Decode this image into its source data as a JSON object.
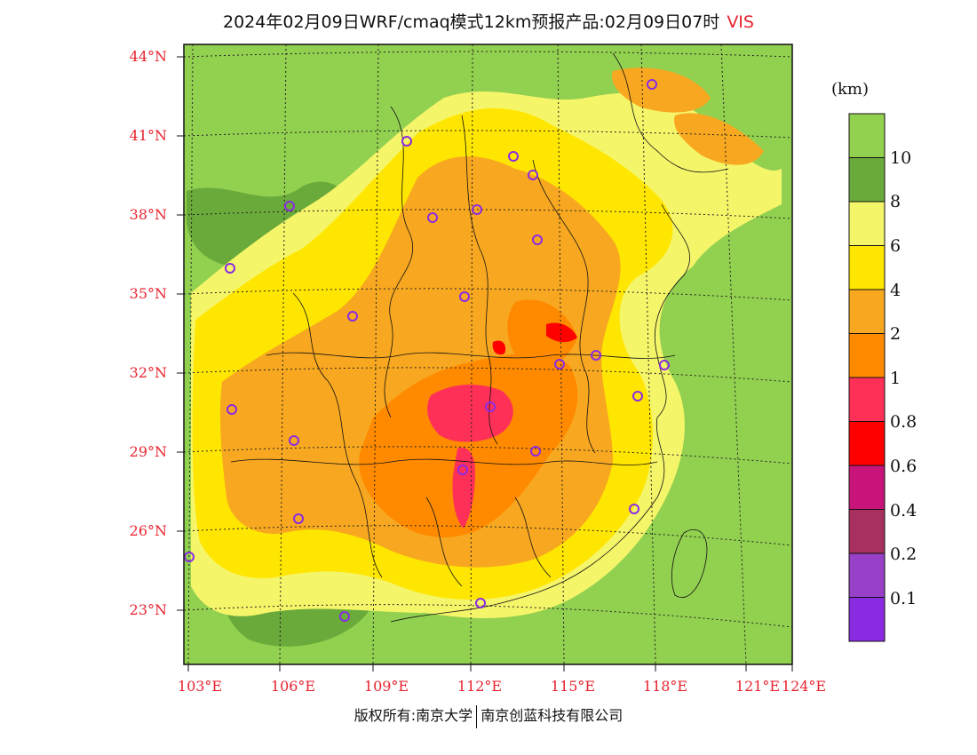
{
  "title": {
    "main": "2024年02月09日WRF/cmaq模式12km预报产品:02月09日07时",
    "variable": "VIS"
  },
  "axes": {
    "lat_labels": [
      "44°N",
      "41°N",
      "38°N",
      "35°N",
      "32°N",
      "29°N",
      "26°N",
      "23°N"
    ],
    "lon_labels": [
      "103°E",
      "106°E",
      "109°E",
      "112°E",
      "115°E",
      "118°E",
      "121°E",
      "124°E"
    ]
  },
  "colorbar": {
    "unit": "(km)",
    "labels": [
      "10",
      "8",
      "6",
      "4",
      "2",
      "1",
      "0.8",
      "0.6",
      "0.4",
      "0.2",
      "0.1"
    ],
    "colors": [
      "#92d050",
      "#6aaa3a",
      "#f5f56a",
      "#ffe600",
      "#f8a820",
      "#ff8a00",
      "#ff3058",
      "#ff0000",
      "#c8147a",
      "#a83060",
      "#9840c8",
      "#8a2be2"
    ]
  },
  "footer": {
    "left": "版权所有:南京大学",
    "right": "南京创蓝科技有限公司"
  }
}
